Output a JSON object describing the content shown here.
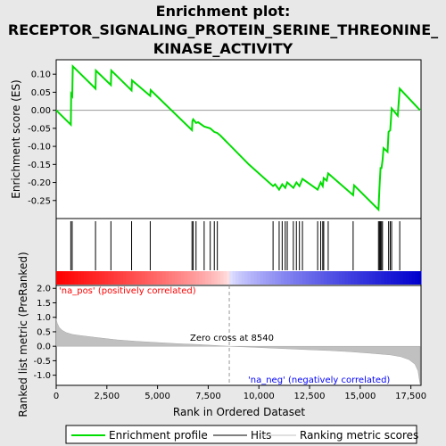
{
  "title_lines": [
    "Enrichment plot:",
    "RECEPTOR_SIGNALING_PROTEIN_SERINE_THREONINE_",
    "KINASE_ACTIVITY"
  ],
  "colors": {
    "es_line": "#00dd00",
    "hits": "#000000",
    "metric_fill": "#c0c0c0",
    "pos_label": "#ff0000",
    "neg_label": "#0000ff",
    "zero_line": "#999999",
    "bar_red": "#ff0000",
    "bar_blue": "#0000cc",
    "panel_border": "#000000",
    "background": "#ffffff",
    "header_bg": "#e8e8e8"
  },
  "chart_data": [
    {
      "type": "line",
      "name": "enrichment_profile",
      "ylabel": "Enrichment score (ES)",
      "xlim": [
        0,
        18000
      ],
      "ylim": [
        -0.3,
        0.14
      ],
      "yticks": [
        0.1,
        0.05,
        0.0,
        -0.05,
        -0.1,
        -0.15,
        -0.2,
        -0.25
      ],
      "ytick_labels": [
        "0.10",
        "0.05",
        "0.00",
        "-0.05",
        "-0.10",
        "-0.15",
        "-0.20",
        "-0.25"
      ],
      "zero_line": true,
      "points": [
        [
          0,
          0.0
        ],
        [
          720,
          -0.04
        ],
        [
          740,
          0.045
        ],
        [
          790,
          0.04
        ],
        [
          820,
          0.122
        ],
        [
          1940,
          0.06
        ],
        [
          1960,
          0.11
        ],
        [
          2700,
          0.07
        ],
        [
          2720,
          0.11
        ],
        [
          3720,
          0.055
        ],
        [
          3740,
          0.083
        ],
        [
          4640,
          0.04
        ],
        [
          4660,
          0.056
        ],
        [
          6700,
          -0.055
        ],
        [
          6720,
          -0.03
        ],
        [
          6760,
          -0.025
        ],
        [
          6900,
          -0.035
        ],
        [
          7000,
          -0.033
        ],
        [
          7300,
          -0.045
        ],
        [
          7600,
          -0.05
        ],
        [
          7800,
          -0.06
        ],
        [
          7950,
          -0.063
        ],
        [
          8100,
          -0.07
        ],
        [
          9500,
          -0.15
        ],
        [
          10700,
          -0.21
        ],
        [
          10800,
          -0.205
        ],
        [
          11000,
          -0.22
        ],
        [
          11150,
          -0.205
        ],
        [
          11300,
          -0.215
        ],
        [
          11400,
          -0.2
        ],
        [
          11700,
          -0.215
        ],
        [
          11850,
          -0.2
        ],
        [
          12000,
          -0.21
        ],
        [
          12150,
          -0.19
        ],
        [
          12900,
          -0.22
        ],
        [
          13050,
          -0.2
        ],
        [
          13150,
          -0.21
        ],
        [
          13200,
          -0.188
        ],
        [
          13350,
          -0.195
        ],
        [
          13420,
          -0.175
        ],
        [
          14650,
          -0.235
        ],
        [
          14700,
          -0.208
        ],
        [
          15900,
          -0.275
        ],
        [
          15950,
          -0.215
        ],
        [
          16000,
          -0.16
        ],
        [
          16050,
          -0.16
        ],
        [
          16100,
          -0.14
        ],
        [
          16150,
          -0.105
        ],
        [
          16350,
          -0.115
        ],
        [
          16400,
          -0.06
        ],
        [
          16480,
          -0.055
        ],
        [
          16550,
          0.005
        ],
        [
          16850,
          -0.015
        ],
        [
          16950,
          0.06
        ],
        [
          17950,
          0.0
        ]
      ]
    },
    {
      "type": "scatter",
      "name": "hits",
      "xlim": [
        0,
        18000
      ],
      "x": [
        720,
        790,
        1940,
        2700,
        3720,
        4640,
        6700,
        6760,
        6900,
        7300,
        7600,
        7800,
        7950,
        10700,
        11000,
        11150,
        11300,
        11400,
        11700,
        11850,
        12000,
        12150,
        12900,
        13050,
        13150,
        13200,
        13420,
        14650,
        15900,
        15950,
        16000,
        16050,
        16100,
        16400,
        16480,
        16550,
        16950
      ]
    },
    {
      "type": "area",
      "name": "ranked_list_metric",
      "xlabel": "Rank in Ordered Dataset",
      "ylabel": "Ranked list metric (PreRanked)",
      "xlim": [
        0,
        18000
      ],
      "ylim": [
        -1.35,
        2.1
      ],
      "yticks": [
        2.0,
        1.5,
        1.0,
        0.5,
        0.0,
        -0.5,
        -1.0
      ],
      "ytick_labels": [
        "2.0",
        "1.5",
        "1.0",
        "0.5",
        "0.0",
        "-0.5",
        "-1.0"
      ],
      "xticks": [
        0,
        2500,
        5000,
        7500,
        10000,
        12500,
        15000,
        17500
      ],
      "xtick_labels": [
        "0",
        "2,500",
        "5,000",
        "7,500",
        "10,000",
        "12,500",
        "15,000",
        "17,500"
      ],
      "points": [
        [
          0,
          0.95
        ],
        [
          50,
          0.8
        ],
        [
          150,
          0.65
        ],
        [
          300,
          0.55
        ],
        [
          500,
          0.47
        ],
        [
          800,
          0.41
        ],
        [
          1200,
          0.37
        ],
        [
          2000,
          0.3
        ],
        [
          3000,
          0.22
        ],
        [
          4000,
          0.17
        ],
        [
          5000,
          0.13
        ],
        [
          6000,
          0.09
        ],
        [
          7000,
          0.06
        ],
        [
          8000,
          0.02
        ],
        [
          8540,
          0.0
        ],
        [
          9500,
          -0.03
        ],
        [
          10500,
          -0.06
        ],
        [
          11500,
          -0.09
        ],
        [
          12500,
          -0.12
        ],
        [
          13500,
          -0.15
        ],
        [
          14500,
          -0.19
        ],
        [
          15500,
          -0.24
        ],
        [
          16500,
          -0.3
        ],
        [
          17000,
          -0.36
        ],
        [
          17400,
          -0.46
        ],
        [
          17700,
          -0.62
        ],
        [
          17850,
          -0.85
        ],
        [
          17950,
          -1.3
        ]
      ],
      "zero_cross_label": "Zero cross at 8540",
      "zero_cross": 8540,
      "pos_label": "'na_pos' (positively correlated)",
      "neg_label": "'na_neg' (negatively correlated)"
    }
  ],
  "legend": {
    "items": [
      {
        "label": "Enrichment profile",
        "color": "#00dd00",
        "kind": "line"
      },
      {
        "label": "Hits",
        "color": "#000000",
        "kind": "vline"
      },
      {
        "label": "Ranking metric scores",
        "color": "#c0c0c0",
        "kind": "fill"
      }
    ]
  }
}
